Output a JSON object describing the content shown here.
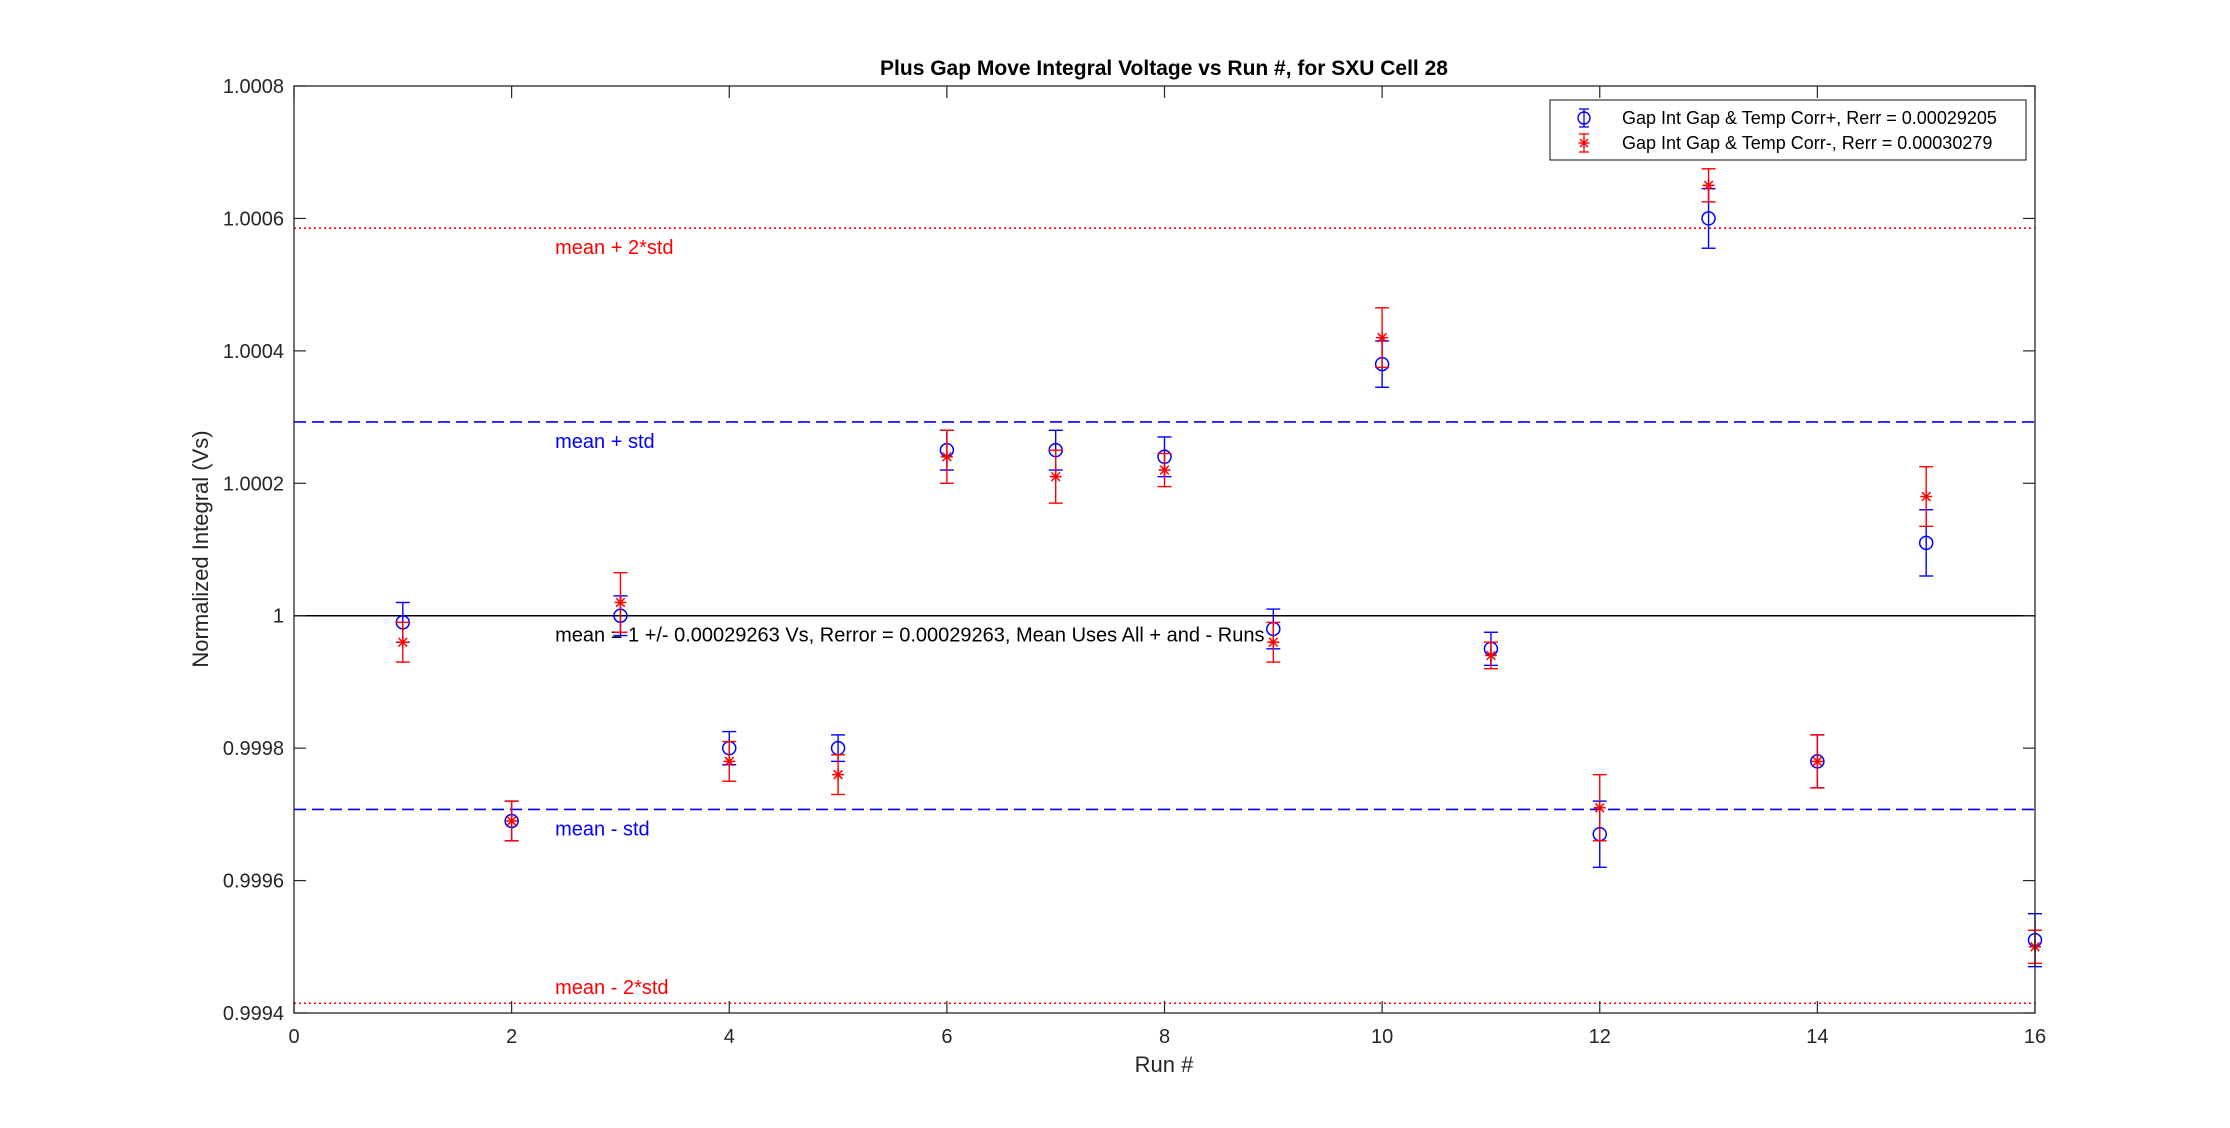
{
  "chart_data": {
    "type": "scatter",
    "title": "Plus Gap Move Integral Voltage vs Run #, for SXU Cell 28",
    "xlabel": "Run #",
    "ylabel": "Normalized Integral (Vs)",
    "xlim": [
      0,
      16
    ],
    "ylim": [
      0.9994,
      1.0008
    ],
    "xticks": [
      0,
      2,
      4,
      6,
      8,
      10,
      12,
      14,
      16
    ],
    "xtick_labels": [
      "0",
      "2",
      "4",
      "6",
      "8",
      "10",
      "12",
      "14",
      "16"
    ],
    "yticks": [
      0.9994,
      0.9996,
      0.9998,
      1.0,
      1.0002,
      1.0004,
      1.0006,
      1.0008
    ],
    "ytick_labels": [
      "0.9994",
      "0.9996",
      "0.9998",
      "1",
      "1.0002",
      "1.0004",
      "1.0006",
      "1.0008"
    ],
    "grid": false,
    "legend_position": "top-right",
    "series": [
      {
        "name": "Gap Int Gap & Temp Corr+, Rerr = 0.00029205",
        "color": "#0000ff",
        "marker": "circle",
        "x": [
          1,
          2,
          3,
          4,
          5,
          6,
          7,
          8,
          9,
          10,
          11,
          12,
          13,
          14,
          15,
          16
        ],
        "y": [
          0.99999,
          0.99969,
          1.0,
          0.9998,
          0.9998,
          1.00025,
          1.00025,
          1.00024,
          0.99998,
          1.00038,
          0.99995,
          0.99967,
          1.0006,
          0.99978,
          1.00011,
          0.99951
        ],
        "err": [
          3e-05,
          3e-05,
          3e-05,
          2.5e-05,
          2e-05,
          3e-05,
          3e-05,
          3e-05,
          3e-05,
          3.5e-05,
          2.5e-05,
          5e-05,
          4.5e-05,
          4e-05,
          5e-05,
          4e-05
        ]
      },
      {
        "name": "Gap Int Gap & Temp  Corr-, Rerr = 0.00030279",
        "color": "#ff0000",
        "marker": "asterisk",
        "x": [
          1,
          2,
          3,
          4,
          5,
          6,
          7,
          8,
          9,
          10,
          11,
          12,
          13,
          14,
          15,
          16
        ],
        "y": [
          0.99996,
          0.99969,
          1.00002,
          0.99978,
          0.99976,
          1.00024,
          1.00021,
          1.00022,
          0.99996,
          1.00042,
          0.99994,
          0.99971,
          1.00065,
          0.99978,
          1.00018,
          0.9995
        ],
        "err": [
          3e-05,
          3e-05,
          4.5e-05,
          3e-05,
          3e-05,
          4e-05,
          4e-05,
          2.5e-05,
          3e-05,
          4.5e-05,
          2e-05,
          5e-05,
          2.5e-05,
          4e-05,
          4.5e-05,
          2.5e-05
        ]
      }
    ],
    "reference_lines": [
      {
        "value": 1.00058526,
        "style": "dotted",
        "color": "#ff0000",
        "label": "mean + 2*std"
      },
      {
        "value": 1.00029263,
        "style": "dashed",
        "color": "#0000ff",
        "label": "mean + std"
      },
      {
        "value": 1.0,
        "style": "solid",
        "color": "#000000",
        "label": "mean = 1 +/- 0.00029263 Vs, Rerror = 0.00029263, Mean Uses All + and - Runs"
      },
      {
        "value": 0.99970737,
        "style": "dashed",
        "color": "#0000ff",
        "label": "mean - std"
      },
      {
        "value": 0.99941474,
        "style": "dotted",
        "color": "#ff0000",
        "label": "mean - 2*std"
      }
    ]
  }
}
